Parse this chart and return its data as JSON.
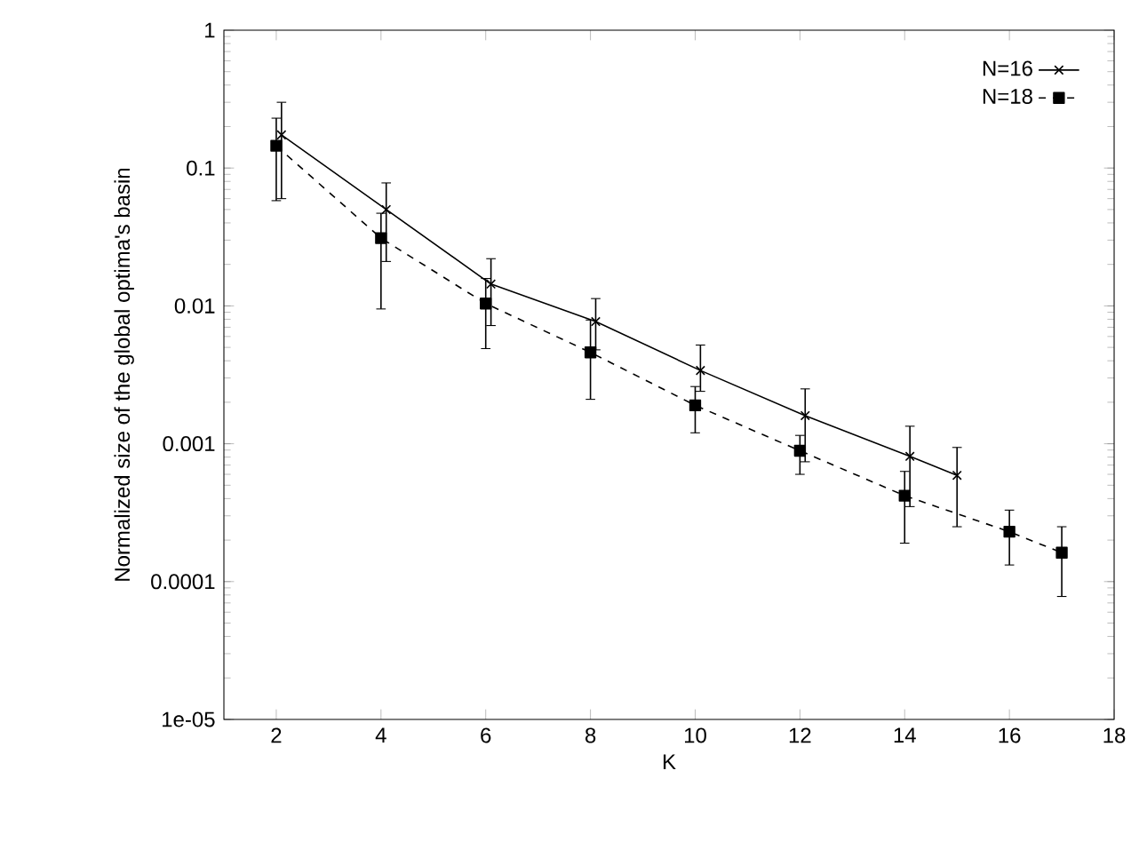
{
  "chart_data": {
    "type": "line",
    "xlabel": "K",
    "ylabel": "Normalized size of the global optima's basin",
    "log": "y",
    "legend": "top right",
    "xlim": [
      1,
      18
    ],
    "xticks": [
      2,
      4,
      6,
      8,
      10,
      12,
      14,
      16,
      18
    ],
    "ylim": [
      1e-05,
      1
    ],
    "yticks": [
      {
        "value": 1e-05,
        "label": "1e-05"
      },
      0.0001,
      0.001,
      0.01,
      0.1,
      1
    ],
    "series": [
      {
        "name": "N=16",
        "color": "#000000",
        "marker": "cross",
        "line_style": "solid",
        "x": [
          2.1,
          4.1,
          6.1,
          8.1,
          10.1,
          12.1,
          14.1,
          15
        ],
        "values": [
          0.174,
          0.05,
          0.0144,
          0.0077,
          0.0034,
          0.0016,
          0.00081,
          0.00059
        ],
        "errors": [
          [
            0.06,
            0.3
          ],
          [
            0.021,
            0.078
          ],
          [
            0.0072,
            0.022
          ],
          [
            0.0048,
            0.0113
          ],
          [
            0.0024,
            0.0052
          ],
          [
            0.00074,
            0.0025
          ],
          [
            0.00035,
            0.00134
          ],
          [
            0.00025,
            0.00094
          ]
        ]
      },
      {
        "name": "N=18",
        "color": "#000000",
        "marker": "square",
        "line_style": "dashed",
        "x": [
          2,
          4,
          6,
          8,
          10,
          12,
          14,
          16,
          17
        ],
        "values": [
          0.145,
          0.031,
          0.0104,
          0.0046,
          0.0019,
          0.00089,
          0.00042,
          0.00023,
          0.000162
        ],
        "errors": [
          [
            0.058,
            0.23
          ],
          [
            0.0095,
            0.047
          ],
          [
            0.0049,
            0.0158
          ],
          [
            0.0021,
            0.0079
          ],
          [
            0.0012,
            0.0026
          ],
          [
            0.0006,
            0.00115
          ],
          [
            0.00019,
            0.00063
          ],
          [
            0.000132,
            0.00033
          ],
          [
            7.8e-05,
            0.00025
          ]
        ]
      }
    ]
  }
}
